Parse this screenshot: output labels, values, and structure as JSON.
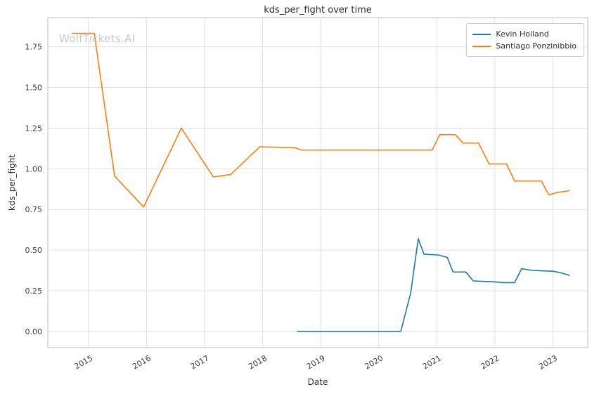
{
  "chart_data": {
    "type": "line",
    "title": "kds_per_fight over time",
    "xlabel": "Date",
    "ylabel": "kds_per_fight",
    "watermark": "WolfTickets.AI",
    "grid": true,
    "legend_position": "upper right",
    "xlim": [
      2014.3,
      2023.6
    ],
    "ylim": [
      -0.1,
      1.93
    ],
    "x_ticks": [
      2015,
      2016,
      2017,
      2018,
      2019,
      2020,
      2021,
      2022,
      2023
    ],
    "y_ticks": [
      0.0,
      0.25,
      0.5,
      0.75,
      1.0,
      1.25,
      1.5,
      1.75
    ],
    "series": [
      {
        "name": "Kevin Holland",
        "color": "#1f77b4",
        "points": [
          [
            2018.6,
            0.0
          ],
          [
            2019.0,
            0.0
          ],
          [
            2019.45,
            0.0
          ],
          [
            2019.95,
            0.0
          ],
          [
            2020.38,
            0.0
          ],
          [
            2020.55,
            0.235
          ],
          [
            2020.68,
            0.57
          ],
          [
            2020.78,
            0.475
          ],
          [
            2021.02,
            0.47
          ],
          [
            2021.18,
            0.455
          ],
          [
            2021.28,
            0.365
          ],
          [
            2021.5,
            0.365
          ],
          [
            2021.63,
            0.31
          ],
          [
            2021.97,
            0.305
          ],
          [
            2022.15,
            0.3
          ],
          [
            2022.34,
            0.3
          ],
          [
            2022.46,
            0.385
          ],
          [
            2022.65,
            0.375
          ],
          [
            2023.0,
            0.37
          ],
          [
            2023.12,
            0.362
          ],
          [
            2023.28,
            0.345
          ]
        ]
      },
      {
        "name": "Santiago Ponzinibbio",
        "color": "#ff7f0e",
        "points": [
          [
            2014.72,
            1.833
          ],
          [
            2015.1,
            1.833
          ],
          [
            2015.45,
            0.955
          ],
          [
            2015.95,
            0.765
          ],
          [
            2016.6,
            1.25
          ],
          [
            2017.15,
            0.95
          ],
          [
            2017.45,
            0.965
          ],
          [
            2017.95,
            1.135
          ],
          [
            2018.55,
            1.13
          ],
          [
            2018.68,
            1.115
          ],
          [
            2020.92,
            1.115
          ],
          [
            2021.05,
            1.21
          ],
          [
            2021.32,
            1.21
          ],
          [
            2021.45,
            1.158
          ],
          [
            2021.72,
            1.158
          ],
          [
            2021.9,
            1.03
          ],
          [
            2022.2,
            1.03
          ],
          [
            2022.34,
            0.925
          ],
          [
            2022.8,
            0.925
          ],
          [
            2022.93,
            0.84
          ],
          [
            2023.08,
            0.855
          ],
          [
            2023.28,
            0.865
          ]
        ]
      }
    ]
  }
}
